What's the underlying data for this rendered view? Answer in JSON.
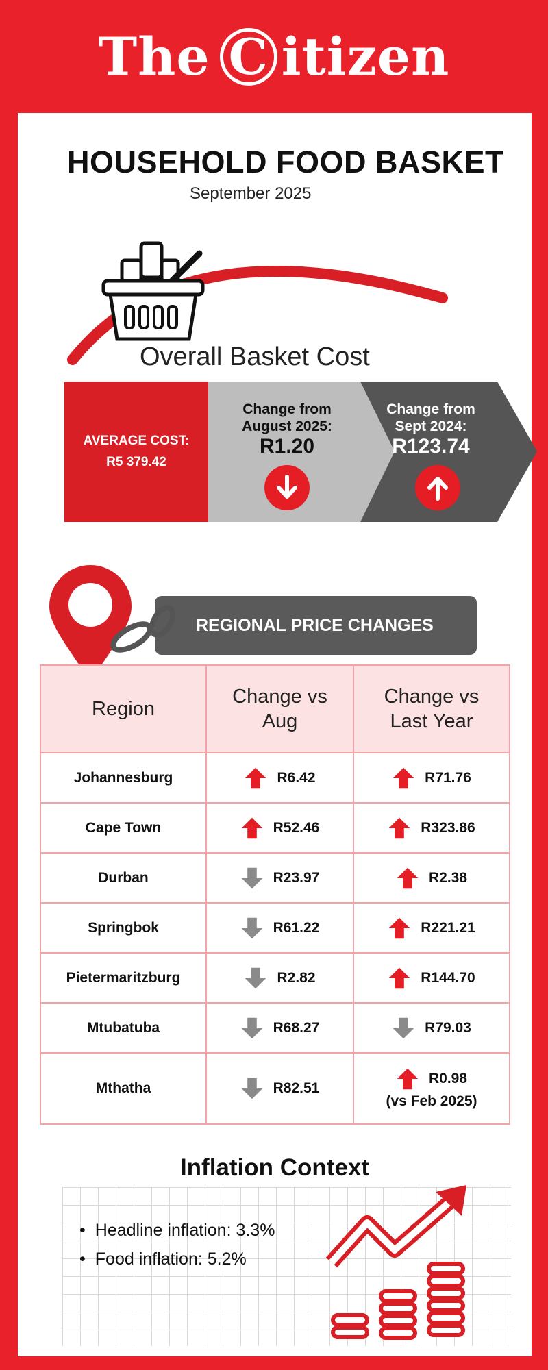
{
  "brand": {
    "logo_the": "The",
    "logo_c": "C",
    "logo_rest": "itizen"
  },
  "header": {
    "title": "HOUSEHOLD FOOD BASKET",
    "subtitle": "September 2025"
  },
  "overall": {
    "heading": "Overall Basket Cost",
    "average_label": "AVERAGE COST:",
    "average_value": "R5 379.42",
    "aug_label_1": "Change from",
    "aug_label_2": "August 2025:",
    "aug_value": "R1.20",
    "aug_direction": "down",
    "year_label_1": "Change from",
    "year_label_2": "Sept 2024:",
    "year_value": "R123.74",
    "year_direction": "up"
  },
  "regional": {
    "heading": "REGIONAL PRICE CHANGES",
    "columns": [
      "Region",
      "Change vs Aug",
      "Change vs Last Year"
    ],
    "rows": [
      {
        "region": "Johannesburg",
        "aug": "R6.42",
        "aug_dir": "up",
        "year": "R71.76",
        "year_dir": "up"
      },
      {
        "region": "Cape Town",
        "aug": "R52.46",
        "aug_dir": "up",
        "year": "R323.86",
        "year_dir": "up"
      },
      {
        "region": "Durban",
        "aug": "R23.97",
        "aug_dir": "down",
        "year": "R2.38",
        "year_dir": "up"
      },
      {
        "region": "Springbok",
        "aug": "R61.22",
        "aug_dir": "down",
        "year": "R221.21",
        "year_dir": "up"
      },
      {
        "region": "Pietermaritzburg",
        "aug": "R2.82",
        "aug_dir": "down",
        "year": "R144.70",
        "year_dir": "up"
      },
      {
        "region": "Mtubatuba",
        "aug": "R68.27",
        "aug_dir": "down",
        "year": "R79.03",
        "year_dir": "down"
      },
      {
        "region": "Mthatha",
        "aug": "R82.51",
        "aug_dir": "down",
        "year": "R0.98",
        "year_dir": "up",
        "year_note": "(vs Feb 2025)"
      }
    ]
  },
  "inflation": {
    "heading": "Inflation Context",
    "items": [
      "Headline inflation: 3.3%",
      "Food inflation: 5.2%"
    ]
  },
  "colors": {
    "brand_red": "#e8212a",
    "up_red": "#e51d25",
    "down_grey": "#8a8a8a",
    "dark_grey": "#5a5a5a"
  },
  "icons": [
    "shopping-basket-icon",
    "location-pin-icon",
    "arrow-up-icon",
    "arrow-down-icon",
    "growth-chart-icon"
  ]
}
